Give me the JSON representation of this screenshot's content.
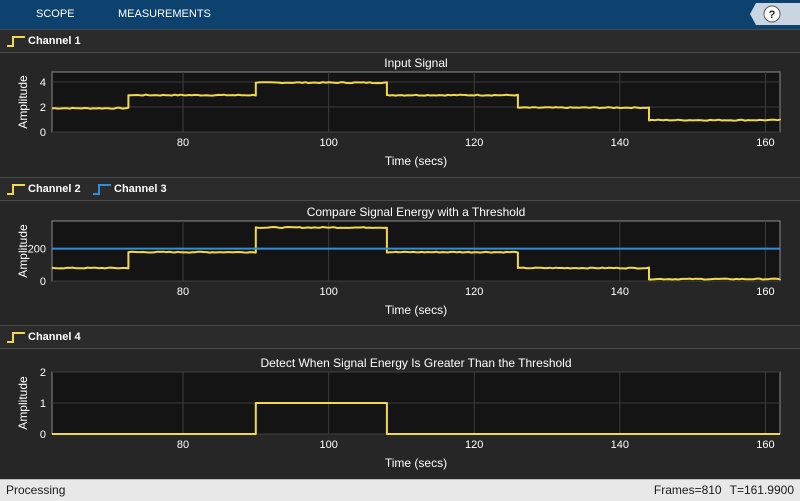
{
  "toolbar": {
    "tabs": [
      {
        "label": "SCOPE"
      },
      {
        "label": "MEASUREMENTS"
      }
    ],
    "help_label": "?"
  },
  "legends": [
    [
      {
        "name": "Channel 1",
        "color": "#f2d94a"
      }
    ],
    [
      {
        "name": "Channel 2",
        "color": "#f2d94a"
      },
      {
        "name": "Channel 3",
        "color": "#2f8fd8"
      }
    ],
    [
      {
        "name": "Channel 4",
        "color": "#f2d94a"
      }
    ]
  ],
  "chart_data": [
    {
      "type": "line",
      "title": "Input Signal",
      "xlabel": "Time (secs)",
      "ylabel": "Amplitude",
      "xlim": [
        62,
        162
      ],
      "ylim": [
        0,
        4.8
      ],
      "xticks": [
        80,
        100,
        120,
        140,
        160
      ],
      "yticks": [
        0,
        2,
        4
      ],
      "grid": true,
      "series": [
        {
          "name": "Channel 1",
          "color": "#f2d94a",
          "step": true,
          "noise": 0.04,
          "x": [
            62,
            72.5,
            90,
            108,
            126,
            144,
            162
          ],
          "y": [
            1.9,
            2.95,
            3.95,
            2.95,
            1.95,
            0.95,
            0.95
          ]
        }
      ]
    },
    {
      "type": "line",
      "title": "Compare Signal Energy with a Threshold",
      "xlabel": "Time (secs)",
      "ylabel": "Amplitude",
      "xlim": [
        62,
        162
      ],
      "ylim": [
        0,
        370
      ],
      "xticks": [
        80,
        100,
        120,
        140,
        160
      ],
      "yticks": [
        0,
        200
      ],
      "grid": true,
      "series": [
        {
          "name": "Channel 2",
          "color": "#f2d94a",
          "step": true,
          "noise": 3,
          "x": [
            62,
            72.5,
            90,
            108,
            126,
            144,
            162
          ],
          "y": [
            80,
            178,
            330,
            178,
            80,
            12,
            12
          ]
        },
        {
          "name": "Channel 3",
          "color": "#2f8fd8",
          "step": true,
          "noise": 0,
          "x": [
            62,
            162
          ],
          "y": [
            200,
            200
          ]
        }
      ]
    },
    {
      "type": "line",
      "title": "Detect When Signal Energy Is Greater Than the Threshold",
      "xlabel": "Time (secs)",
      "ylabel": "Amplitude",
      "xlim": [
        62,
        162
      ],
      "ylim": [
        0,
        2
      ],
      "xticks": [
        80,
        100,
        120,
        140,
        160
      ],
      "yticks": [
        0,
        1,
        2
      ],
      "grid": true,
      "series": [
        {
          "name": "Channel 4",
          "color": "#f2d94a",
          "step": true,
          "noise": 0,
          "x": [
            62,
            90,
            108,
            162
          ],
          "y": [
            0,
            1,
            0,
            0
          ]
        }
      ]
    }
  ],
  "status": {
    "state": "Processing",
    "frames": "Frames=810",
    "time": "T=161.9900"
  }
}
